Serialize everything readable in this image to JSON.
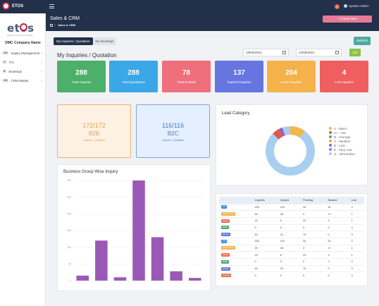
{
  "app": {
    "name": "ETOS"
  },
  "topbar": {
    "notification_count": "2",
    "user_label": "System Admin"
  },
  "sidebar": {
    "logo_text": "etos",
    "logo_tagline": "Redefine Tour Operator Software",
    "company": "DMC Company Name",
    "items": [
      {
        "abbr": "CM",
        "label": "Inquiry Management"
      },
      {
        "abbr": "IT",
        "label": "ITC"
      },
      {
        "abbr": "B",
        "label": "Bookings"
      },
      {
        "abbr": "CM",
        "label": "CRM Master"
      }
    ]
  },
  "header": {
    "title": "Sales & CRM",
    "breadcrumb": "Sales & CRM",
    "create_label": "+ Create New"
  },
  "tabs": [
    {
      "label": "My Inquiries / Quotation"
    },
    {
      "label": "My Bookings"
    }
  ],
  "refresh_label": "Refresh",
  "main_title": "My Inquiries / Quotation",
  "dates": {
    "from": "18/03/2021",
    "to": "12/05/2021"
  },
  "go_label": "Go!",
  "stats": [
    {
      "value": "288",
      "label": "Total Inquiries",
      "color": "#4caf6a"
    },
    {
      "value": "288",
      "label": "Total Quotations",
      "color": "#3aa7e6"
    },
    {
      "value": "78",
      "label": "Total Booked",
      "color": "#ef6f7c"
    },
    {
      "value": "137",
      "label": "Expired Inquiries",
      "color": "#6675e0"
    },
    {
      "value": "204",
      "label": "Active Inquiries",
      "color": "#f5b24a"
    },
    {
      "value": "4",
      "label": "Lost Inquiries",
      "color": "#ef5f5f"
    }
  ],
  "b2b": {
    "value": "172/172",
    "type": "B2B",
    "sub": "Inquiries / Quotation"
  },
  "b2c": {
    "value": "116/116",
    "type": "B2C",
    "sub": "Inquiries / Quotation"
  },
  "lead_category": {
    "title": "Lead Category",
    "legend": [
      {
        "label": "A - Warm",
        "color": "#f2b84b"
      },
      {
        "label": "A+ - Hot",
        "color": "#e5564b"
      },
      {
        "label": "B - Average",
        "color": "#4cae6e"
      },
      {
        "label": "C - Medium",
        "color": "#f0a640"
      },
      {
        "label": "D - Low",
        "color": "#8e5fd0"
      },
      {
        "label": "E - Very Low",
        "color": "#9b7ad6"
      },
      {
        "label": "G - Information",
        "color": "#a9cff0"
      }
    ]
  },
  "business_group": {
    "title": "Business Group Wise Inquiry"
  },
  "chart_data": {
    "type": "bar",
    "title": "Business Group Wise Inquiry",
    "categories": [
      "",
      "",
      "",
      "",
      "",
      "",
      ""
    ],
    "values": [
      15,
      120,
      10,
      300,
      130,
      28,
      8
    ],
    "ylim": [
      0,
      300
    ],
    "yticks": [
      0,
      50,
      100,
      150,
      200,
      250,
      300
    ],
    "color": "#9b59b6",
    "grid": true
  },
  "table": {
    "headers": [
      "",
      "Inquiries",
      "Quoted",
      "Pending",
      "Booked",
      "Lost"
    ],
    "rows": [
      {
        "badge": "FIT",
        "badge_color": "#3a8ee6",
        "cells": [
          "163",
          "115",
          "34",
          "51",
          "2"
        ]
      },
      {
        "badge": "Large Group",
        "badge_color": "#f5b24a",
        "cells": [
          "30",
          "28",
          "2",
          "17",
          "1"
        ]
      },
      {
        "badge": "Series",
        "badge_color": "#ef6f4f",
        "cells": [
          "23",
          "6",
          "23",
          "4",
          "1"
        ]
      },
      {
        "badge": "MICE",
        "badge_color": "#4caf6a",
        "cells": [
          "0",
          "0",
          "0",
          "0",
          "0"
        ]
      },
      {
        "badge": "Events",
        "badge_color": "#6675e0",
        "cells": [
          "40",
          "10",
          "10",
          "0",
          "0"
        ]
      },
      {
        "badge": "FIT",
        "badge_color": "#3a8ee6",
        "cells": [
          "163",
          "115",
          "34",
          "51",
          "2"
        ]
      },
      {
        "badge": "Large Group",
        "badge_color": "#f5b24a",
        "cells": [
          "30",
          "28",
          "2",
          "17",
          "1"
        ]
      },
      {
        "badge": "Series",
        "badge_color": "#ef6f4f",
        "cells": [
          "23",
          "6",
          "23",
          "4",
          "1"
        ]
      },
      {
        "badge": "MICE",
        "badge_color": "#4caf6a",
        "cells": [
          "0",
          "0",
          "0",
          "0",
          "0"
        ]
      },
      {
        "badge": "Events",
        "badge_color": "#6675e0",
        "cells": [
          "40",
          "10",
          "10",
          "0",
          "0"
        ]
      },
      {
        "badge": "Transfer",
        "badge_color": "#e3754a",
        "cells": [
          "0",
          "0",
          "0",
          "0",
          "0"
        ]
      }
    ]
  }
}
